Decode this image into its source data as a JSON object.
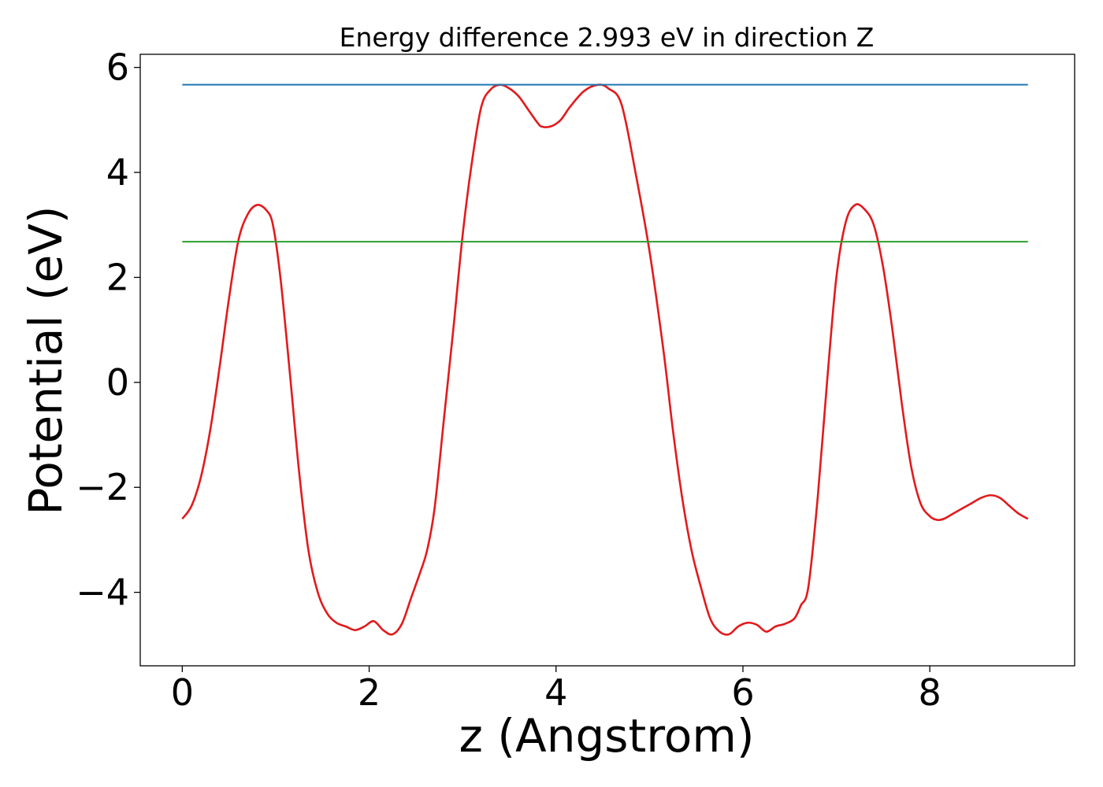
{
  "chart_data": {
    "type": "line",
    "title": "Energy difference 2.993 eV in direction Z",
    "xlabel": "z (Angstrom)",
    "ylabel": "Potential (eV)",
    "xlim": [
      -0.45,
      9.55
    ],
    "ylim": [
      -5.4,
      6.25
    ],
    "xticks": [
      0,
      2,
      4,
      6,
      8
    ],
    "xtick_labels": [
      "0",
      "2",
      "4",
      "6",
      "8"
    ],
    "yticks": [
      -4,
      -2,
      0,
      2,
      4,
      6
    ],
    "ytick_labels": [
      "−4",
      "−2",
      "0",
      "2",
      "4",
      "6"
    ],
    "grid": false,
    "series": [
      {
        "color": "#e31a1c",
        "x": [
          0.0,
          0.1,
          0.2,
          0.3,
          0.4,
          0.5,
          0.6,
          0.7,
          0.8,
          0.9,
          0.97,
          1.05,
          1.15,
          1.25,
          1.35,
          1.45,
          1.55,
          1.65,
          1.75,
          1.85,
          1.95,
          2.05,
          2.15,
          2.25,
          2.35,
          2.45,
          2.55,
          2.62,
          2.7,
          2.8,
          2.9,
          3.0,
          3.1,
          3.2,
          3.3,
          3.4,
          3.5,
          3.6,
          3.7,
          3.8,
          3.85,
          3.95,
          4.05,
          4.15,
          4.3,
          4.45,
          4.56,
          4.7,
          4.85,
          5.0,
          5.15,
          5.25,
          5.35,
          5.45,
          5.55,
          5.65,
          5.75,
          5.85,
          5.95,
          6.05,
          6.15,
          6.25,
          6.35,
          6.45,
          6.55,
          6.62,
          6.7,
          6.8,
          6.9,
          7.0,
          7.1,
          7.2,
          7.3,
          7.4,
          7.5,
          7.6,
          7.7,
          7.8,
          7.9,
          8.0,
          8.08,
          8.15,
          8.25,
          8.35,
          8.45,
          8.55,
          8.65,
          8.75,
          8.85,
          8.95,
          9.05
        ],
        "y": [
          -2.6,
          -2.35,
          -1.8,
          -0.9,
          0.3,
          1.6,
          2.7,
          3.2,
          3.38,
          3.28,
          3.0,
          2.0,
          0.2,
          -1.7,
          -3.2,
          -4.0,
          -4.4,
          -4.58,
          -4.65,
          -4.72,
          -4.65,
          -4.55,
          -4.72,
          -4.8,
          -4.6,
          -4.1,
          -3.6,
          -3.2,
          -2.4,
          -0.7,
          1.0,
          2.8,
          4.2,
          5.25,
          5.58,
          5.67,
          5.6,
          5.45,
          5.2,
          4.95,
          4.87,
          4.88,
          5.0,
          5.25,
          5.55,
          5.67,
          5.6,
          5.3,
          4.0,
          2.5,
          0.6,
          -0.9,
          -2.2,
          -3.2,
          -3.9,
          -4.5,
          -4.75,
          -4.8,
          -4.65,
          -4.58,
          -4.62,
          -4.75,
          -4.65,
          -4.6,
          -4.5,
          -4.25,
          -3.9,
          -2.2,
          0.0,
          2.0,
          3.05,
          3.38,
          3.3,
          3.0,
          2.2,
          1.0,
          -0.4,
          -1.6,
          -2.3,
          -2.55,
          -2.62,
          -2.6,
          -2.5,
          -2.4,
          -2.3,
          -2.2,
          -2.15,
          -2.2,
          -2.35,
          -2.5,
          -2.6
        ]
      },
      {
        "color": "#1f77b4",
        "x": [
          0.0,
          9.05
        ],
        "y": [
          5.67,
          5.67
        ]
      },
      {
        "color": "#2ca02c",
        "x": [
          0.0,
          9.05
        ],
        "y": [
          2.68,
          2.68
        ]
      }
    ]
  }
}
